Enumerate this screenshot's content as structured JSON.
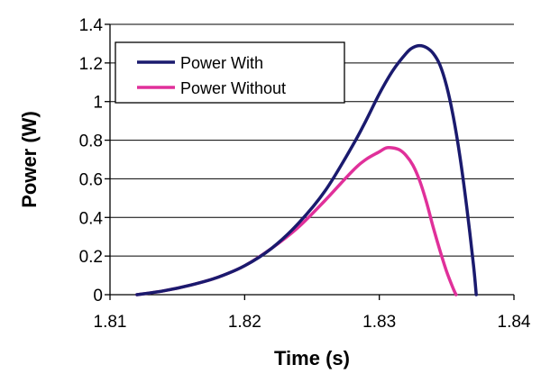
{
  "chart_data": {
    "type": "line",
    "title": "",
    "xlabel": "Time (s)",
    "ylabel": "Power (W)",
    "xlim": [
      1.81,
      1.84
    ],
    "ylim": [
      0,
      1.4
    ],
    "x_ticks": [
      "1.81",
      "1.82",
      "1.83",
      "1.84"
    ],
    "y_ticks": [
      "0",
      "0.2",
      "0.4",
      "0.6",
      "0.8",
      "1",
      "1.2",
      "1.4"
    ],
    "grid": "horizontal",
    "legend_position": "top-left",
    "series": [
      {
        "name": "Power With",
        "color": "#1a1a6e",
        "x": [
          1.812,
          1.814,
          1.816,
          1.818,
          1.82,
          1.822,
          1.824,
          1.826,
          1.828,
          1.829,
          1.83,
          1.831,
          1.832,
          1.8325,
          1.833,
          1.8335,
          1.834,
          1.8345,
          1.835,
          1.8355,
          1.836,
          1.8365,
          1.837,
          1.8372
        ],
        "y": [
          0.0,
          0.02,
          0.05,
          0.09,
          0.15,
          0.24,
          0.37,
          0.54,
          0.77,
          0.9,
          1.04,
          1.16,
          1.25,
          1.28,
          1.29,
          1.28,
          1.25,
          1.19,
          1.08,
          0.92,
          0.71,
          0.45,
          0.15,
          0.0
        ]
      },
      {
        "name": "Power Without",
        "color": "#e0309a",
        "x": [
          1.812,
          1.814,
          1.816,
          1.818,
          1.82,
          1.822,
          1.824,
          1.826,
          1.828,
          1.829,
          1.83,
          1.8305,
          1.831,
          1.8315,
          1.832,
          1.8325,
          1.833,
          1.8335,
          1.834,
          1.8345,
          1.835,
          1.8355,
          1.8357
        ],
        "y": [
          0.0,
          0.02,
          0.05,
          0.09,
          0.15,
          0.24,
          0.35,
          0.49,
          0.64,
          0.7,
          0.74,
          0.76,
          0.76,
          0.75,
          0.72,
          0.67,
          0.59,
          0.48,
          0.35,
          0.23,
          0.12,
          0.03,
          0.0
        ]
      }
    ]
  }
}
